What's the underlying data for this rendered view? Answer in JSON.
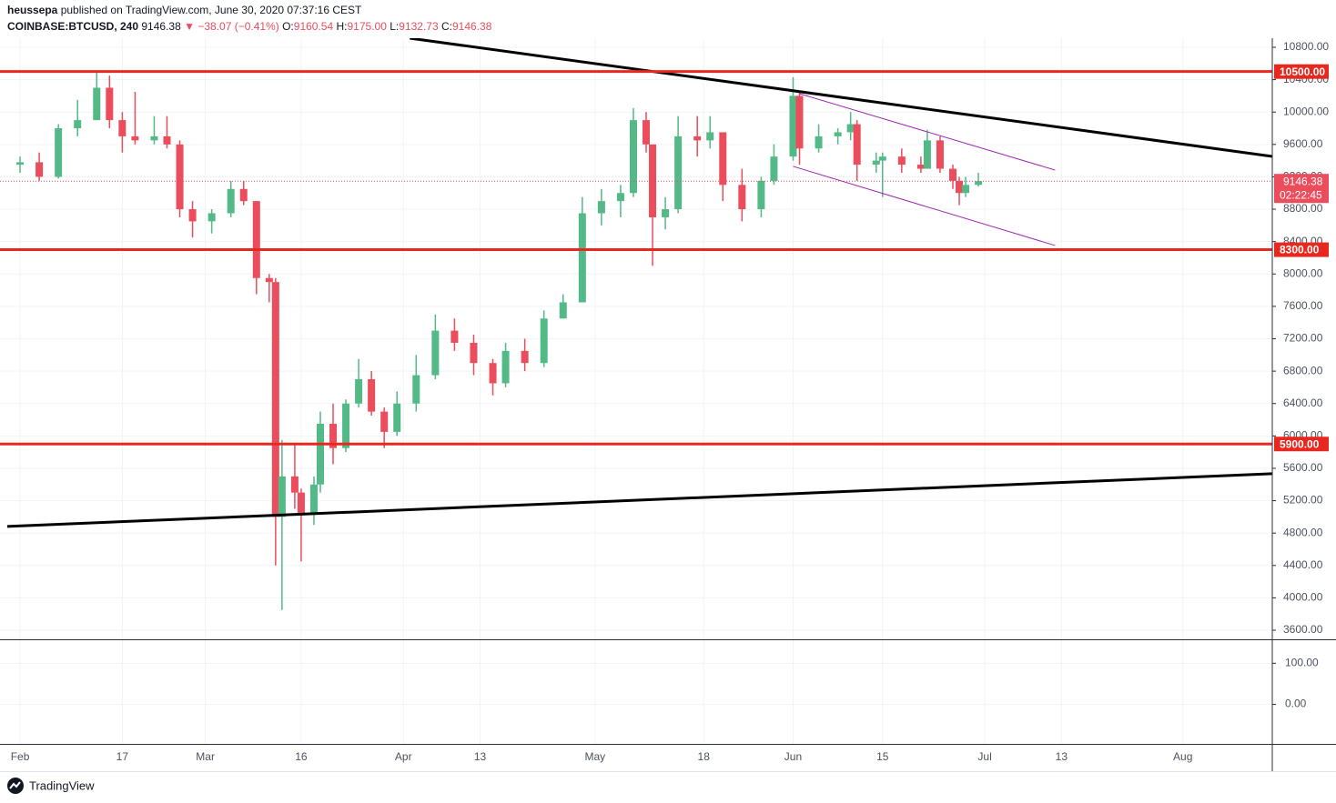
{
  "header": {
    "author": "heussepa",
    "published": "published on TradingView.com, June 30, 2020 07:37:16 CEST",
    "symbol": "COINBASE:BTCUSD, 240",
    "last": "9146.38",
    "arrow": "▼",
    "change": "−38.07 (−0.41%)",
    "ohlc": [
      {
        "label": "O:",
        "value": "9160.54"
      },
      {
        "label": "H:",
        "value": "9175.00"
      },
      {
        "label": "L:",
        "value": "9132.73"
      },
      {
        "label": "C:",
        "value": "9146.38"
      }
    ]
  },
  "footer": {
    "brand": "TradingView"
  },
  "chart_data": {
    "type": "candlestick",
    "x": [
      "02-01",
      "02-04",
      "02-07",
      "02-10",
      "02-13",
      "02-15",
      "02-17",
      "02-19",
      "02-22",
      "02-24",
      "02-26",
      "02-28",
      "03-02",
      "03-05",
      "03-07",
      "03-09",
      "03-11",
      "03-12",
      "03-13",
      "03-15",
      "03-16",
      "03-18",
      "03-19",
      "03-21",
      "03-23",
      "03-25",
      "03-27",
      "03-29",
      "03-31",
      "04-03",
      "04-06",
      "04-09",
      "04-12",
      "04-15",
      "04-17",
      "04-20",
      "04-23",
      "04-26",
      "04-29",
      "05-02",
      "05-05",
      "05-07",
      "05-09",
      "05-10",
      "05-12",
      "05-14",
      "05-17",
      "05-19",
      "05-21",
      "05-24",
      "05-27",
      "05-29",
      "06-01",
      "06-02",
      "06-05",
      "06-08",
      "06-10",
      "06-11",
      "06-14",
      "06-15",
      "06-18",
      "06-21",
      "06-22",
      "06-24",
      "06-26",
      "06-27",
      "06-28",
      "06-30"
    ],
    "open": [
      9350,
      9380,
      9200,
      9800,
      9900,
      10300,
      9900,
      9700,
      9650,
      9700,
      9600,
      8800,
      8650,
      8750,
      9050,
      8900,
      7950,
      7900,
      5000,
      5500,
      5300,
      5050,
      5400,
      6150,
      5850,
      6400,
      6700,
      6300,
      6050,
      6400,
      6750,
      7300,
      7150,
      6900,
      6650,
      7050,
      6900,
      7450,
      7650,
      8750,
      8900,
      9000,
      9900,
      9600,
      8700,
      8800,
      9700,
      9650,
      9750,
      9100,
      8800,
      9150,
      9450,
      10200,
      9550,
      9700,
      9750,
      9850,
      9350,
      9400,
      9450,
      9350,
      9300,
      9650,
      9300,
      9150,
      9000,
      9100
    ],
    "high": [
      9450,
      9500,
      9850,
      10150,
      10500,
      10450,
      10000,
      10250,
      9950,
      9950,
      9650,
      8900,
      8800,
      9150,
      9150,
      8900,
      8000,
      7950,
      5950,
      5900,
      5350,
      5500,
      6300,
      6400,
      6450,
      6950,
      6800,
      6350,
      6550,
      7000,
      7500,
      7450,
      7250,
      6950,
      7150,
      7200,
      7550,
      7750,
      8950,
      9050,
      9100,
      10050,
      10000,
      9600,
      8950,
      9950,
      9950,
      9950,
      9750,
      9300,
      9200,
      9600,
      10430,
      10250,
      9850,
      9800,
      10000,
      9900,
      9500,
      9500,
      9550,
      9450,
      9780,
      9700,
      9350,
      9200,
      9200,
      9250
    ],
    "low": [
      9250,
      9150,
      9180,
      9700,
      9900,
      9800,
      9500,
      9600,
      9600,
      9550,
      8700,
      8450,
      8500,
      8700,
      8850,
      7750,
      7650,
      4400,
      3850,
      5100,
      4450,
      4900,
      5300,
      5650,
      5800,
      6350,
      6250,
      5850,
      6000,
      6300,
      6700,
      7050,
      6750,
      6500,
      6600,
      6800,
      6850,
      7450,
      7650,
      8600,
      8700,
      8950,
      9500,
      8100,
      8550,
      8750,
      9450,
      9550,
      8900,
      8650,
      8700,
      9100,
      9400,
      9350,
      9500,
      9600,
      9650,
      9150,
      9250,
      8950,
      9250,
      9250,
      9300,
      9250,
      9050,
      8850,
      8950,
      9080
    ],
    "close": [
      9380,
      9200,
      9800,
      9900,
      10300,
      9900,
      9700,
      9650,
      9700,
      9600,
      8800,
      8650,
      8750,
      9050,
      8900,
      7950,
      7900,
      5000,
      5500,
      5300,
      5050,
      5400,
      6150,
      5850,
      6400,
      6700,
      6300,
      6050,
      6400,
      6750,
      7300,
      7150,
      6900,
      6650,
      7050,
      6900,
      7450,
      7650,
      8750,
      8900,
      9000,
      9900,
      9600,
      8700,
      8800,
      9700,
      9650,
      9750,
      9100,
      8800,
      9150,
      9450,
      10200,
      9550,
      9700,
      9750,
      9850,
      9350,
      9400,
      9450,
      9350,
      9300,
      9650,
      9300,
      9150,
      9000,
      9100,
      9146.38
    ],
    "up_color": "#53b987",
    "down_color": "#eb4d5c",
    "xlim": [
      "01-30",
      "08-15"
    ],
    "xticks": [
      {
        "value": "02-01",
        "label": "Feb"
      },
      {
        "value": "02-17",
        "label": "17"
      },
      {
        "value": "03-01",
        "label": "Mar"
      },
      {
        "value": "03-16",
        "label": "16"
      },
      {
        "value": "04-01",
        "label": "Apr"
      },
      {
        "value": "04-13",
        "label": "13"
      },
      {
        "value": "05-01",
        "label": "May"
      },
      {
        "value": "05-18",
        "label": "18"
      },
      {
        "value": "06-01",
        "label": "Jun"
      },
      {
        "value": "06-15",
        "label": "15"
      },
      {
        "value": "07-01",
        "label": "Jul"
      },
      {
        "value": "07-13",
        "label": "13"
      },
      {
        "value": "08-01",
        "label": "Aug"
      }
    ],
    "ylim": [
      3488,
      10912
    ],
    "yticks": [
      {
        "value": 10800,
        "label": "10800.00"
      },
      {
        "value": 10400,
        "label": "10400.00"
      },
      {
        "value": 10000,
        "label": "10000.00"
      },
      {
        "value": 9600,
        "label": "9600.00"
      },
      {
        "value": 9200,
        "label": "9200.00"
      },
      {
        "value": 8800,
        "label": "8800.00"
      },
      {
        "value": 8400,
        "label": "8400.00"
      },
      {
        "value": 8000,
        "label": "8000.00"
      },
      {
        "value": 7600,
        "label": "7600.00"
      },
      {
        "value": 7200,
        "label": "7200.00"
      },
      {
        "value": 6800,
        "label": "6800.00"
      },
      {
        "value": 6400,
        "label": "6400.00"
      },
      {
        "value": 6000,
        "label": "6000.00"
      },
      {
        "value": 5600,
        "label": "5600.00"
      },
      {
        "value": 5200,
        "label": "5200.00"
      },
      {
        "value": 4800,
        "label": "4800.00"
      },
      {
        "value": 4400,
        "label": "4400.00"
      },
      {
        "value": 4000,
        "label": "4000.00"
      },
      {
        "value": 3600,
        "label": "3600.00"
      }
    ],
    "grid": true,
    "levels": [
      {
        "value": 10500,
        "label": "10500.00",
        "color": "#e8281e"
      },
      {
        "value": 8300,
        "label": "8300.00",
        "color": "#e8281e"
      },
      {
        "value": 5900,
        "label": "5900.00",
        "color": "#e8281e"
      }
    ],
    "last_price": {
      "value": 9146.38,
      "label": "9146.38",
      "countdown": "02:22:45",
      "color": "#eb4d5c"
    },
    "trendlines": [
      {
        "x": [
          "04-02",
          "08-15"
        ],
        "y": [
          10912,
          9452
        ],
        "color": "#000000"
      },
      {
        "x": [
          "01-30",
          "08-15"
        ],
        "y": [
          4882,
          5533
        ],
        "color": "#000000"
      },
      {
        "x": [
          "06-02",
          "07-12"
        ],
        "y": [
          10227,
          9283
        ],
        "color": "#9c27b0"
      },
      {
        "x": [
          "06-01",
          "07-12"
        ],
        "y": [
          9329,
          8352
        ],
        "color": "#9c27b0"
      }
    ],
    "lower_pane": {
      "ylim": [
        -96,
        156
      ],
      "yticks": [
        {
          "value": 100,
          "label": "100.00"
        },
        {
          "value": 0,
          "label": "0.00"
        }
      ]
    }
  }
}
